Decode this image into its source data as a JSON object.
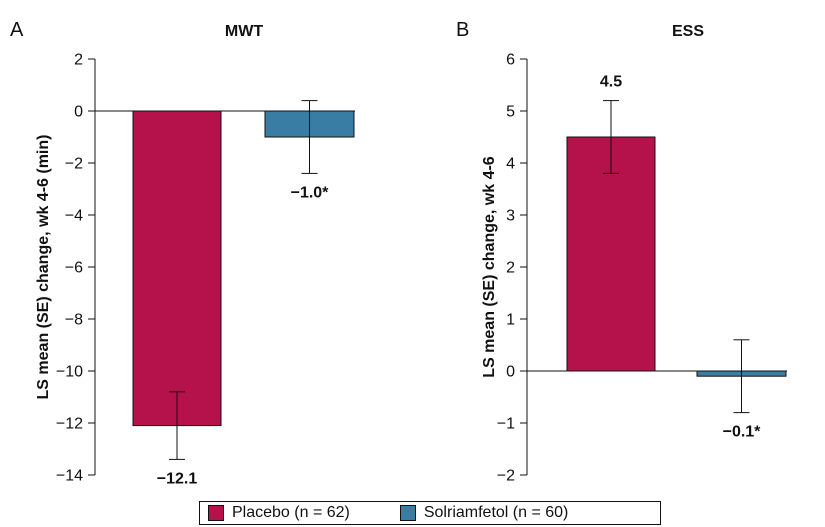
{
  "legend": {
    "items": [
      {
        "label": "Placebo (n = 62)",
        "color": "#b5114a"
      },
      {
        "label": "Solriamfetol (n = 60)",
        "color": "#3a7da4"
      }
    ]
  },
  "chart_data": [
    {
      "type": "bar",
      "panel": "A",
      "title": "MWT",
      "ylabel": "LS mean (SE) change, wk 4-6 (min)",
      "xlabel": "",
      "ylim": [
        -14,
        2
      ],
      "yticks": [
        2,
        0,
        -2,
        -4,
        -6,
        -8,
        -10,
        -12,
        -14
      ],
      "ytick_labels": [
        "2",
        "0",
        "−2",
        "−4",
        "−6",
        "−8",
        "−10",
        "−12",
        "−14"
      ],
      "grid": false,
      "categories": [
        "Placebo",
        "Solriamfetol"
      ],
      "values": [
        -12.1,
        -1.0
      ],
      "error_low": [
        -13.4,
        -2.4
      ],
      "error_high": [
        -10.8,
        0.4
      ],
      "data_labels": [
        "−12.1",
        "−1.0*"
      ],
      "colors": [
        "#b5114a",
        "#3a7da4"
      ]
    },
    {
      "type": "bar",
      "panel": "B",
      "title": "ESS",
      "ylabel": "LS mean (SE) change, wk 4-6",
      "xlabel": "",
      "ylim": [
        -2,
        6
      ],
      "yticks": [
        6,
        5,
        4,
        3,
        2,
        1,
        0,
        -1,
        -2
      ],
      "ytick_labels": [
        "6",
        "5",
        "4",
        "3",
        "2",
        "1",
        "0",
        "−1",
        "−2"
      ],
      "grid": false,
      "categories": [
        "Placebo",
        "Solriamfetol"
      ],
      "values": [
        4.5,
        -0.1
      ],
      "error_low": [
        3.8,
        -0.8
      ],
      "error_high": [
        5.2,
        0.6
      ],
      "data_labels": [
        "4.5",
        "−0.1*"
      ],
      "colors": [
        "#b5114a",
        "#3a7da4"
      ]
    }
  ]
}
